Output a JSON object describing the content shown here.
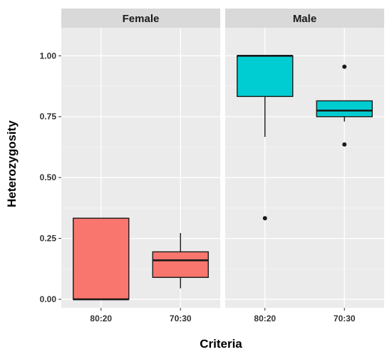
{
  "chart_data": {
    "type": "boxplot",
    "xlabel": "Criteria",
    "ylabel": "Heterozygosity",
    "ylim": [
      -0.035,
      1.115
    ],
    "yticks": [
      0.0,
      0.25,
      0.5,
      0.75,
      1.0
    ],
    "ytick_labels": [
      "0.00",
      "0.25",
      "0.50",
      "0.75",
      "1.00"
    ],
    "categories": [
      "80:20",
      "70:30"
    ],
    "grid": true,
    "legend": "none",
    "colors": {
      "panel_bg": "#EBEBEB",
      "strip_bg": "#D9D9D9",
      "grid_major": "#FFFFFF",
      "grid_minor": "#F5F5F5",
      "female_fill": "#F8766D",
      "male_fill": "#00CDD2",
      "outline": "#1a1a1a"
    },
    "facets": [
      {
        "label": "Female",
        "fill": "#F8766D",
        "boxes": [
          {
            "category": "80:20",
            "min": 0.0,
            "q1": 0.0,
            "median": 0.0,
            "q3": 0.333,
            "max": 0.333,
            "outliers": []
          },
          {
            "category": "70:30",
            "min": 0.045,
            "q1": 0.09,
            "median": 0.16,
            "q3": 0.195,
            "max": 0.272,
            "outliers": []
          }
        ]
      },
      {
        "label": "Male",
        "fill": "#00CDD2",
        "boxes": [
          {
            "category": "80:20",
            "min": 0.667,
            "q1": 0.833,
            "median": 1.0,
            "q3": 1.0,
            "max": 1.0,
            "outliers": [
              0.333
            ]
          },
          {
            "category": "70:30",
            "min": 0.73,
            "q1": 0.75,
            "median": 0.775,
            "q3": 0.815,
            "max": 0.815,
            "outliers": [
              0.955,
              0.636
            ]
          }
        ]
      }
    ]
  }
}
